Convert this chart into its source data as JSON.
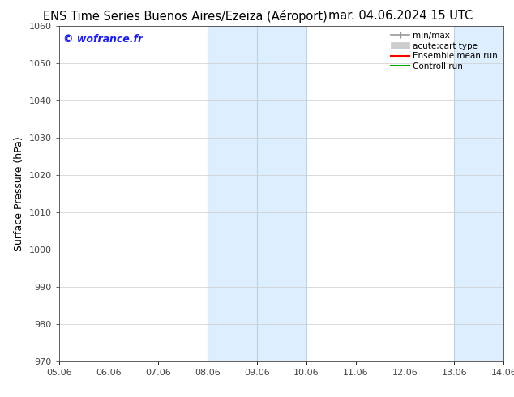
{
  "title_left": "ENS Time Series Buenos Aires/Ezeiza (Aéroport)",
  "title_right": "mar. 04.06.2024 15 UTC",
  "ylabel": "Surface Pressure (hPa)",
  "xlim_left": 0,
  "xlim_right": 9,
  "ylim_bottom": 970,
  "ylim_top": 1060,
  "yticks": [
    970,
    980,
    990,
    1000,
    1010,
    1020,
    1030,
    1040,
    1050,
    1060
  ],
  "xtick_labels": [
    "05.06",
    "06.06",
    "07.06",
    "08.06",
    "09.06",
    "10.06",
    "11.06",
    "12.06",
    "13.06",
    "14.06"
  ],
  "xtick_positions": [
    0,
    1,
    2,
    3,
    4,
    5,
    6,
    7,
    8,
    9
  ],
  "shaded_bands": [
    {
      "xmin": 3,
      "xmax": 5,
      "color": "#ddeeff"
    },
    {
      "xmin": 8,
      "xmax": 9,
      "color": "#ddeeff"
    }
  ],
  "band_vlines": [
    3,
    4,
    5,
    8,
    9
  ],
  "band_vline_color": "#b8d4ea",
  "watermark": "© wofrance.fr",
  "watermark_color": "#1a1aff",
  "background_color": "#ffffff",
  "grid_color": "#cccccc",
  "spine_color": "#444444",
  "tick_color": "#444444",
  "title_fontsize": 10.5,
  "ylabel_fontsize": 9,
  "tick_fontsize": 8,
  "watermark_fontsize": 9,
  "legend_fontsize": 7.5,
  "legend_minmax_color": "#999999",
  "legend_acute_color": "#cccccc",
  "legend_ens_color": "#ff0000",
  "legend_ctrl_color": "#00aa00"
}
